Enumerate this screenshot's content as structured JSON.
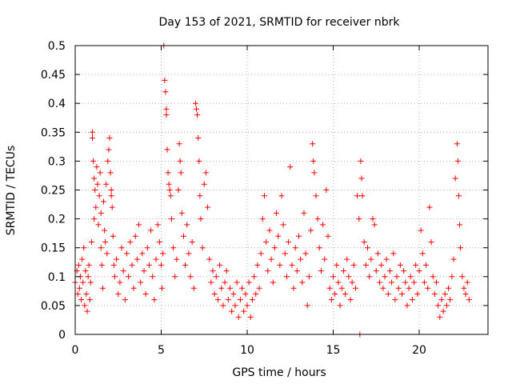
{
  "chart_data": {
    "type": "scatter",
    "title": "Day 153 of 2021, SRMTID for receiver nbrk",
    "xlabel": "GPS time / hours",
    "ylabel": "SRMTID / TECUs",
    "xlim": [
      0,
      24
    ],
    "ylim": [
      0,
      0.5
    ],
    "x_ticks": [
      0,
      5,
      10,
      15,
      20
    ],
    "x_tick_labels": [
      "0",
      "5",
      "10",
      "15",
      "20"
    ],
    "y_ticks": [
      0,
      0.05,
      0.1,
      0.15,
      0.2,
      0.25,
      0.3,
      0.35,
      0.4,
      0.45,
      0.5
    ],
    "y_tick_labels": [
      "0",
      "0.05",
      "0.1",
      "0.15",
      "0.2",
      "0.25",
      "0.3",
      "0.35",
      "0.4",
      "0.45",
      "0.5"
    ],
    "grid": true,
    "marker": "+",
    "series": [
      {
        "name": "SRMTID",
        "color": "#ff0000",
        "points": [
          [
            0.0,
            0.09
          ],
          [
            0.1,
            0.11
          ],
          [
            0.15,
            0.07
          ],
          [
            0.2,
            0.12
          ],
          [
            0.25,
            0.08
          ],
          [
            0.3,
            0.1
          ],
          [
            0.35,
            0.06
          ],
          [
            0.4,
            0.13
          ],
          [
            0.45,
            0.09
          ],
          [
            0.5,
            0.15
          ],
          [
            0.55,
            0.05
          ],
          [
            0.6,
            0.11
          ],
          [
            0.65,
            0.07
          ],
          [
            0.7,
            0.04
          ],
          [
            0.75,
            0.1
          ],
          [
            0.8,
            0.12
          ],
          [
            0.85,
            0.06
          ],
          [
            0.9,
            0.09
          ],
          [
            0.95,
            0.16
          ],
          [
            1.0,
            0.35
          ],
          [
            1.0,
            0.34
          ],
          [
            1.05,
            0.3
          ],
          [
            1.1,
            0.27
          ],
          [
            1.1,
            0.2
          ],
          [
            1.15,
            0.25
          ],
          [
            1.2,
            0.22
          ],
          [
            1.25,
            0.29
          ],
          [
            1.3,
            0.26
          ],
          [
            1.35,
            0.19
          ],
          [
            1.4,
            0.24
          ],
          [
            1.45,
            0.28
          ],
          [
            1.5,
            0.21
          ],
          [
            1.5,
            0.15
          ],
          [
            1.55,
            0.12
          ],
          [
            1.6,
            0.08
          ],
          [
            1.65,
            0.23
          ],
          [
            1.7,
            0.18
          ],
          [
            1.75,
            0.16
          ],
          [
            1.8,
            0.26
          ],
          [
            1.85,
            0.14
          ],
          [
            1.9,
            0.3
          ],
          [
            1.95,
            0.32
          ],
          [
            2.0,
            0.34
          ],
          [
            2.05,
            0.28
          ],
          [
            2.1,
            0.24
          ],
          [
            2.1,
            0.25
          ],
          [
            2.15,
            0.22
          ],
          [
            2.2,
            0.17
          ],
          [
            2.25,
            0.12
          ],
          [
            2.3,
            0.1
          ],
          [
            2.4,
            0.13
          ],
          [
            2.5,
            0.07
          ],
          [
            2.6,
            0.09
          ],
          [
            2.7,
            0.15
          ],
          [
            2.8,
            0.11
          ],
          [
            2.9,
            0.06
          ],
          [
            3.0,
            0.14
          ],
          [
            3.1,
            0.1
          ],
          [
            3.2,
            0.16
          ],
          [
            3.3,
            0.12
          ],
          [
            3.4,
            0.08
          ],
          [
            3.5,
            0.17
          ],
          [
            3.6,
            0.13
          ],
          [
            3.7,
            0.19
          ],
          [
            3.8,
            0.09
          ],
          [
            3.9,
            0.14
          ],
          [
            4.0,
            0.11
          ],
          [
            4.1,
            0.07
          ],
          [
            4.2,
            0.15
          ],
          [
            4.3,
            0.12
          ],
          [
            4.4,
            0.18
          ],
          [
            4.5,
            0.1
          ],
          [
            4.6,
            0.06
          ],
          [
            4.7,
            0.13
          ],
          [
            4.8,
            0.19
          ],
          [
            4.9,
            0.16
          ],
          [
            5.0,
            0.12
          ],
          [
            5.05,
            0.08
          ],
          [
            5.1,
            0.14
          ],
          [
            5.15,
            0.5
          ],
          [
            5.2,
            0.44
          ],
          [
            5.25,
            0.42
          ],
          [
            5.3,
            0.39
          ],
          [
            5.3,
            0.38
          ],
          [
            5.35,
            0.32
          ],
          [
            5.4,
            0.28
          ],
          [
            5.45,
            0.26
          ],
          [
            5.5,
            0.25
          ],
          [
            5.55,
            0.24
          ],
          [
            5.6,
            0.2
          ],
          [
            5.7,
            0.15
          ],
          [
            5.8,
            0.1
          ],
          [
            5.9,
            0.13
          ],
          [
            6.0,
            0.25
          ],
          [
            6.05,
            0.33
          ],
          [
            6.1,
            0.3
          ],
          [
            6.15,
            0.28
          ],
          [
            6.2,
            0.21
          ],
          [
            6.3,
            0.17
          ],
          [
            6.4,
            0.12
          ],
          [
            6.5,
            0.19
          ],
          [
            6.6,
            0.14
          ],
          [
            6.7,
            0.1
          ],
          [
            6.8,
            0.16
          ],
          [
            6.9,
            0.08
          ],
          [
            7.0,
            0.4
          ],
          [
            7.05,
            0.39
          ],
          [
            7.1,
            0.38
          ],
          [
            7.15,
            0.34
          ],
          [
            7.2,
            0.3
          ],
          [
            7.25,
            0.24
          ],
          [
            7.3,
            0.2
          ],
          [
            7.4,
            0.15
          ],
          [
            7.5,
            0.26
          ],
          [
            7.6,
            0.28
          ],
          [
            7.7,
            0.22
          ],
          [
            7.8,
            0.13
          ],
          [
            7.9,
            0.09
          ],
          [
            8.0,
            0.11
          ],
          [
            8.1,
            0.07
          ],
          [
            8.2,
            0.1
          ],
          [
            8.3,
            0.06
          ],
          [
            8.4,
            0.12
          ],
          [
            8.5,
            0.08
          ],
          [
            8.6,
            0.05
          ],
          [
            8.7,
            0.09
          ],
          [
            8.8,
            0.11
          ],
          [
            8.9,
            0.06
          ],
          [
            9.0,
            0.08
          ],
          [
            9.1,
            0.04
          ],
          [
            9.2,
            0.07
          ],
          [
            9.3,
            0.05
          ],
          [
            9.4,
            0.09
          ],
          [
            9.5,
            0.03
          ],
          [
            9.6,
            0.06
          ],
          [
            9.7,
            0.08
          ],
          [
            9.8,
            0.04
          ],
          [
            9.9,
            0.07
          ],
          [
            10.0,
            0.05
          ],
          [
            10.1,
            0.09
          ],
          [
            10.2,
            0.03
          ],
          [
            10.3,
            0.06
          ],
          [
            10.4,
            0.1
          ],
          [
            10.5,
            0.07
          ],
          [
            10.6,
            0.12
          ],
          [
            10.7,
            0.08
          ],
          [
            10.8,
            0.14
          ],
          [
            10.9,
            0.2
          ],
          [
            11.0,
            0.24
          ],
          [
            11.1,
            0.16
          ],
          [
            11.2,
            0.11
          ],
          [
            11.3,
            0.18
          ],
          [
            11.4,
            0.13
          ],
          [
            11.5,
            0.09
          ],
          [
            11.6,
            0.15
          ],
          [
            11.7,
            0.21
          ],
          [
            11.8,
            0.17
          ],
          [
            11.9,
            0.12
          ],
          [
            12.0,
            0.24
          ],
          [
            12.1,
            0.19
          ],
          [
            12.2,
            0.14
          ],
          [
            12.3,
            0.1
          ],
          [
            12.4,
            0.16
          ],
          [
            12.5,
            0.29
          ],
          [
            12.6,
            0.12
          ],
          [
            12.7,
            0.08
          ],
          [
            12.8,
            0.15
          ],
          [
            12.9,
            0.11
          ],
          [
            13.0,
            0.17
          ],
          [
            13.1,
            0.13
          ],
          [
            13.2,
            0.09
          ],
          [
            13.3,
            0.21
          ],
          [
            13.4,
            0.14
          ],
          [
            13.5,
            0.05
          ],
          [
            13.6,
            0.1
          ],
          [
            13.7,
            0.18
          ],
          [
            13.8,
            0.33
          ],
          [
            13.85,
            0.3
          ],
          [
            13.9,
            0.28
          ],
          [
            14.0,
            0.24
          ],
          [
            14.1,
            0.2
          ],
          [
            14.2,
            0.15
          ],
          [
            14.3,
            0.11
          ],
          [
            14.4,
            0.19
          ],
          [
            14.5,
            0.13
          ],
          [
            14.6,
            0.25
          ],
          [
            14.7,
            0.17
          ],
          [
            14.8,
            0.08
          ],
          [
            14.9,
            0.06
          ],
          [
            15.0,
            0.1
          ],
          [
            15.1,
            0.07
          ],
          [
            15.2,
            0.12
          ],
          [
            15.3,
            0.09
          ],
          [
            15.4,
            0.05
          ],
          [
            15.5,
            0.08
          ],
          [
            15.6,
            0.11
          ],
          [
            15.7,
            0.07
          ],
          [
            15.8,
            0.13
          ],
          [
            15.9,
            0.1
          ],
          [
            16.0,
            0.06
          ],
          [
            16.1,
            0.09
          ],
          [
            16.2,
            0.12
          ],
          [
            16.3,
            0.08
          ],
          [
            16.4,
            0.24
          ],
          [
            16.5,
            0.2
          ],
          [
            16.55,
            0.0
          ],
          [
            16.6,
            0.3
          ],
          [
            16.65,
            0.27
          ],
          [
            16.7,
            0.24
          ],
          [
            16.8,
            0.16
          ],
          [
            16.9,
            0.12
          ],
          [
            17.0,
            0.15
          ],
          [
            17.1,
            0.1
          ],
          [
            17.2,
            0.13
          ],
          [
            17.3,
            0.2
          ],
          [
            17.4,
            0.19
          ],
          [
            17.5,
            0.11
          ],
          [
            17.6,
            0.14
          ],
          [
            17.7,
            0.09
          ],
          [
            17.8,
            0.12
          ],
          [
            17.9,
            0.08
          ],
          [
            18.0,
            0.1
          ],
          [
            18.1,
            0.13
          ],
          [
            18.2,
            0.07
          ],
          [
            18.3,
            0.11
          ],
          [
            18.4,
            0.09
          ],
          [
            18.5,
            0.14
          ],
          [
            18.6,
            0.06
          ],
          [
            18.7,
            0.1
          ],
          [
            18.8,
            0.08
          ],
          [
            18.9,
            0.12
          ],
          [
            19.0,
            0.07
          ],
          [
            19.1,
            0.11
          ],
          [
            19.2,
            0.09
          ],
          [
            19.3,
            0.05
          ],
          [
            19.4,
            0.08
          ],
          [
            19.5,
            0.1
          ],
          [
            19.6,
            0.06
          ],
          [
            19.7,
            0.09
          ],
          [
            19.8,
            0.12
          ],
          [
            19.9,
            0.07
          ],
          [
            20.0,
            0.11
          ],
          [
            20.1,
            0.18
          ],
          [
            20.2,
            0.14
          ],
          [
            20.3,
            0.09
          ],
          [
            20.4,
            0.12
          ],
          [
            20.5,
            0.08
          ],
          [
            20.6,
            0.22
          ],
          [
            20.7,
            0.16
          ],
          [
            20.8,
            0.1
          ],
          [
            20.9,
            0.07
          ],
          [
            21.0,
            0.09
          ],
          [
            21.1,
            0.05
          ],
          [
            21.2,
            0.03
          ],
          [
            21.3,
            0.06
          ],
          [
            21.4,
            0.04
          ],
          [
            21.5,
            0.07
          ],
          [
            21.6,
            0.05
          ],
          [
            21.7,
            0.08
          ],
          [
            21.8,
            0.06
          ],
          [
            21.9,
            0.1
          ],
          [
            22.0,
            0.13
          ],
          [
            22.1,
            0.27
          ],
          [
            22.2,
            0.33
          ],
          [
            22.25,
            0.3
          ],
          [
            22.3,
            0.24
          ],
          [
            22.35,
            0.19
          ],
          [
            22.4,
            0.15
          ],
          [
            22.5,
            0.1
          ],
          [
            22.6,
            0.08
          ],
          [
            22.7,
            0.07
          ],
          [
            22.8,
            0.09
          ],
          [
            22.9,
            0.06
          ]
        ]
      }
    ]
  }
}
